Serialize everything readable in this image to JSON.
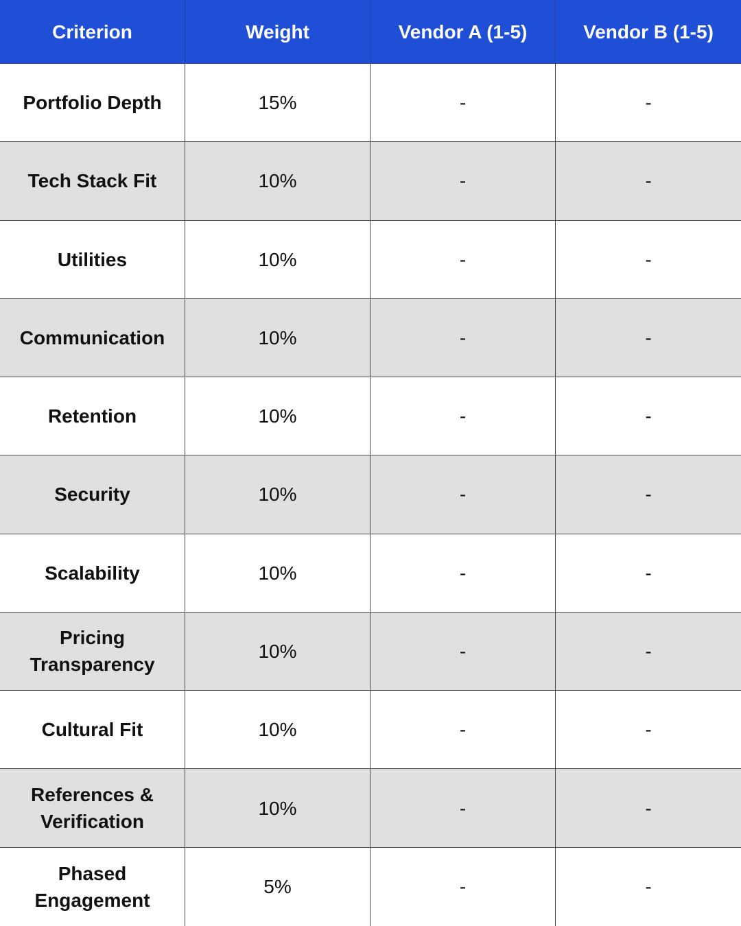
{
  "table": {
    "header_bg": "#1f4fd6",
    "stripe_bg": "#e0e0e0",
    "headers": [
      "Criterion",
      "Weight",
      "Vendor A (1-5)",
      "Vendor B (1-5)"
    ],
    "rows": [
      {
        "criterion": "Portfolio Depth",
        "weight": "15%",
        "vendor_a": "-",
        "vendor_b": "-"
      },
      {
        "criterion": "Tech Stack Fit",
        "weight": "10%",
        "vendor_a": "-",
        "vendor_b": "-"
      },
      {
        "criterion": "Utilities",
        "weight": "10%",
        "vendor_a": "-",
        "vendor_b": "-"
      },
      {
        "criterion": "Communication",
        "weight": "10%",
        "vendor_a": "-",
        "vendor_b": "-"
      },
      {
        "criterion": "Retention",
        "weight": "10%",
        "vendor_a": "-",
        "vendor_b": "-"
      },
      {
        "criterion": "Security",
        "weight": "10%",
        "vendor_a": "-",
        "vendor_b": "-"
      },
      {
        "criterion": "Scalability",
        "weight": "10%",
        "vendor_a": "-",
        "vendor_b": "-"
      },
      {
        "criterion": "Pricing Transparency",
        "weight": "10%",
        "vendor_a": "-",
        "vendor_b": "-"
      },
      {
        "criterion": "Cultural Fit",
        "weight": "10%",
        "vendor_a": "-",
        "vendor_b": "-"
      },
      {
        "criterion": "References & Verification",
        "weight": "10%",
        "vendor_a": "-",
        "vendor_b": "-"
      },
      {
        "criterion": "Phased Engagement",
        "weight": "5%",
        "vendor_a": "-",
        "vendor_b": "-"
      }
    ]
  }
}
